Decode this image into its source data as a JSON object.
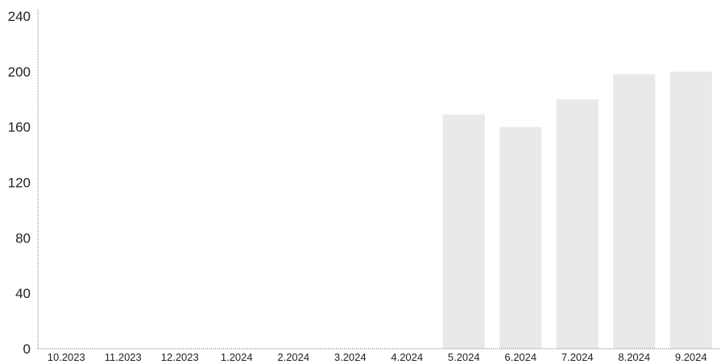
{
  "chart_data": {
    "type": "bar",
    "categories": [
      "10.2023",
      "11.2023",
      "12.2023",
      "1.2024",
      "2.2024",
      "3.2024",
      "4.2024",
      "5.2024",
      "6.2024",
      "7.2024",
      "8.2024",
      "9.2024"
    ],
    "values": [
      0,
      0,
      0,
      0,
      0,
      0,
      0,
      169,
      160,
      180,
      198,
      200
    ],
    "ylim": [
      0,
      240
    ],
    "yticks": [
      0,
      40,
      80,
      120,
      160,
      200,
      240
    ],
    "title": "",
    "xlabel": "",
    "ylabel": "",
    "grid": false,
    "bar_color": "#e9e9e9"
  }
}
